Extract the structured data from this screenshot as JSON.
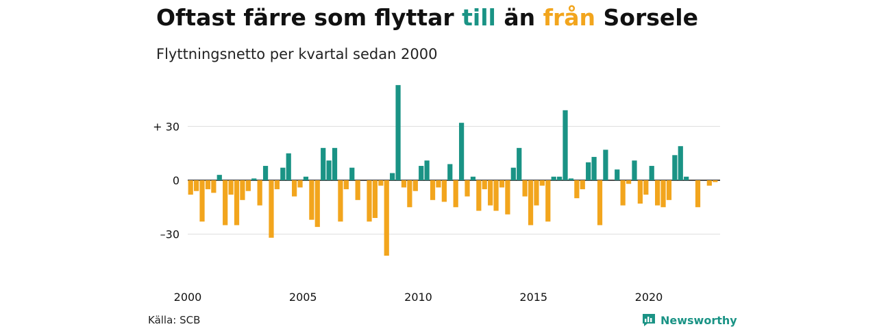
{
  "title": {
    "part1": "Oftast färre som flyttar ",
    "word_positive": "till",
    "part2": " än ",
    "word_negative": "från",
    "part3": " Sorsele"
  },
  "subtitle": "Flyttningsnetto per kvartal sedan 2000",
  "source": "Källa: SCB",
  "brand": {
    "name": "Newsworthy",
    "icon": "newsworthy-logo-icon"
  },
  "colors": {
    "positive": "#1a9385",
    "negative": "#f2a51d",
    "grid": "#dddddd",
    "zero": "#111111"
  },
  "chart_data": {
    "type": "bar",
    "title": "Oftast färre som flyttar till än från Sorsele",
    "subtitle": "Flyttningsnetto per kvartal sedan 2000",
    "xlabel": "",
    "ylabel": "",
    "start": "2000 Q1",
    "x_ticks": [
      "2000",
      "2005",
      "2010",
      "2015",
      "2020"
    ],
    "y_ticks": [
      {
        "value": 30,
        "label": "+ 30"
      },
      {
        "value": 0,
        "label": "0"
      },
      {
        "value": -30,
        "label": "–30"
      }
    ],
    "ylim": [
      -45,
      55
    ],
    "grid": true,
    "values": [
      -8,
      -6,
      -23,
      -5,
      -7,
      3,
      -25,
      -8,
      -25,
      -11,
      -6,
      1,
      -14,
      8,
      -32,
      -5,
      7,
      15,
      -9,
      -4,
      2,
      -22,
      -26,
      18,
      11,
      18,
      -23,
      -5,
      7,
      -11,
      0,
      -23,
      -21,
      -3,
      -42,
      4,
      53,
      -4,
      -15,
      -6,
      8,
      11,
      -11,
      -4,
      -12,
      9,
      -15,
      32,
      -9,
      2,
      -17,
      -5,
      -14,
      -17,
      -4,
      -19,
      7,
      18,
      -9,
      -25,
      -14,
      -3,
      -23,
      2,
      2,
      39,
      1,
      -10,
      -5,
      10,
      13,
      -25,
      17,
      0,
      6,
      -14,
      -2,
      11,
      -13,
      -8,
      8,
      -14,
      -15,
      -11,
      14,
      19,
      2,
      0,
      -15,
      0,
      -3,
      -1
    ]
  }
}
